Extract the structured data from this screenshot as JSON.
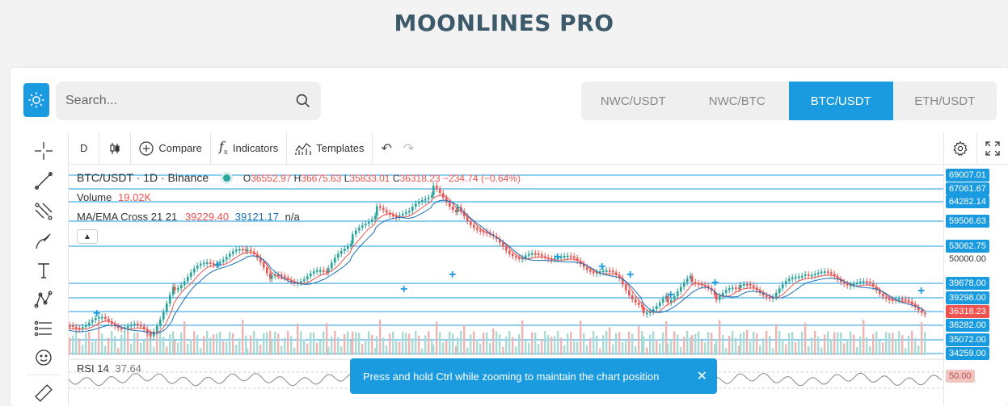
{
  "header": {
    "title": "MOONLINES PRO"
  },
  "search": {
    "placeholder": "Search..."
  },
  "pairs": [
    {
      "label": "NWC/USDT",
      "active": false
    },
    {
      "label": "NWC/BTC",
      "active": false
    },
    {
      "label": "BTC/USDT",
      "active": true
    },
    {
      "label": "ETH/USDT",
      "active": false
    }
  ],
  "toolbar": {
    "interval": "D",
    "compare": "Compare",
    "indicators": "Indicators",
    "templates": "Templates"
  },
  "legend": {
    "symbol": "BTC/USDT · 1D · Binance",
    "o_label": "O",
    "o": "36552.97",
    "h_label": "H",
    "h": "36675.63",
    "l_label": "L",
    "l": "35833.01",
    "c_label": "C",
    "c": "36318.23",
    "change": "−234.74 (−0.64%)",
    "volume_label": "Volume",
    "volume": "19.02K",
    "ma_label": "MA/EMA Cross 21 21",
    "ma1": "39229.40",
    "ma2": "39121.17",
    "ma3": "n/a",
    "rsi_label": "RSI 14",
    "rsi": "37.64"
  },
  "price_scale": [
    {
      "value": "69007.01",
      "style": "blue"
    },
    {
      "value": "67061.67",
      "style": "blue"
    },
    {
      "value": "64282.14",
      "style": "blue"
    },
    {
      "value": "59506.63",
      "style": "blue"
    },
    {
      "value": "53062.75",
      "style": "blue"
    },
    {
      "value": "50000.00",
      "style": "plain"
    },
    {
      "value": "39678.00",
      "style": "blue"
    },
    {
      "value": "39298.00",
      "style": "blue"
    },
    {
      "value": "36318.23",
      "style": "red"
    },
    {
      "value": "36282.00",
      "style": "blue"
    },
    {
      "value": "35072.00",
      "style": "blue"
    },
    {
      "value": "34259.00",
      "style": "blue"
    },
    {
      "value": "50.00",
      "style": "rsi"
    }
  ],
  "toast": {
    "message": "Press and hold Ctrl while zooming to maintain the chart position"
  },
  "colors": {
    "accent": "#1a9be0",
    "up": "#26a69a",
    "down": "#ef5350",
    "title": "#3d5a6b"
  }
}
